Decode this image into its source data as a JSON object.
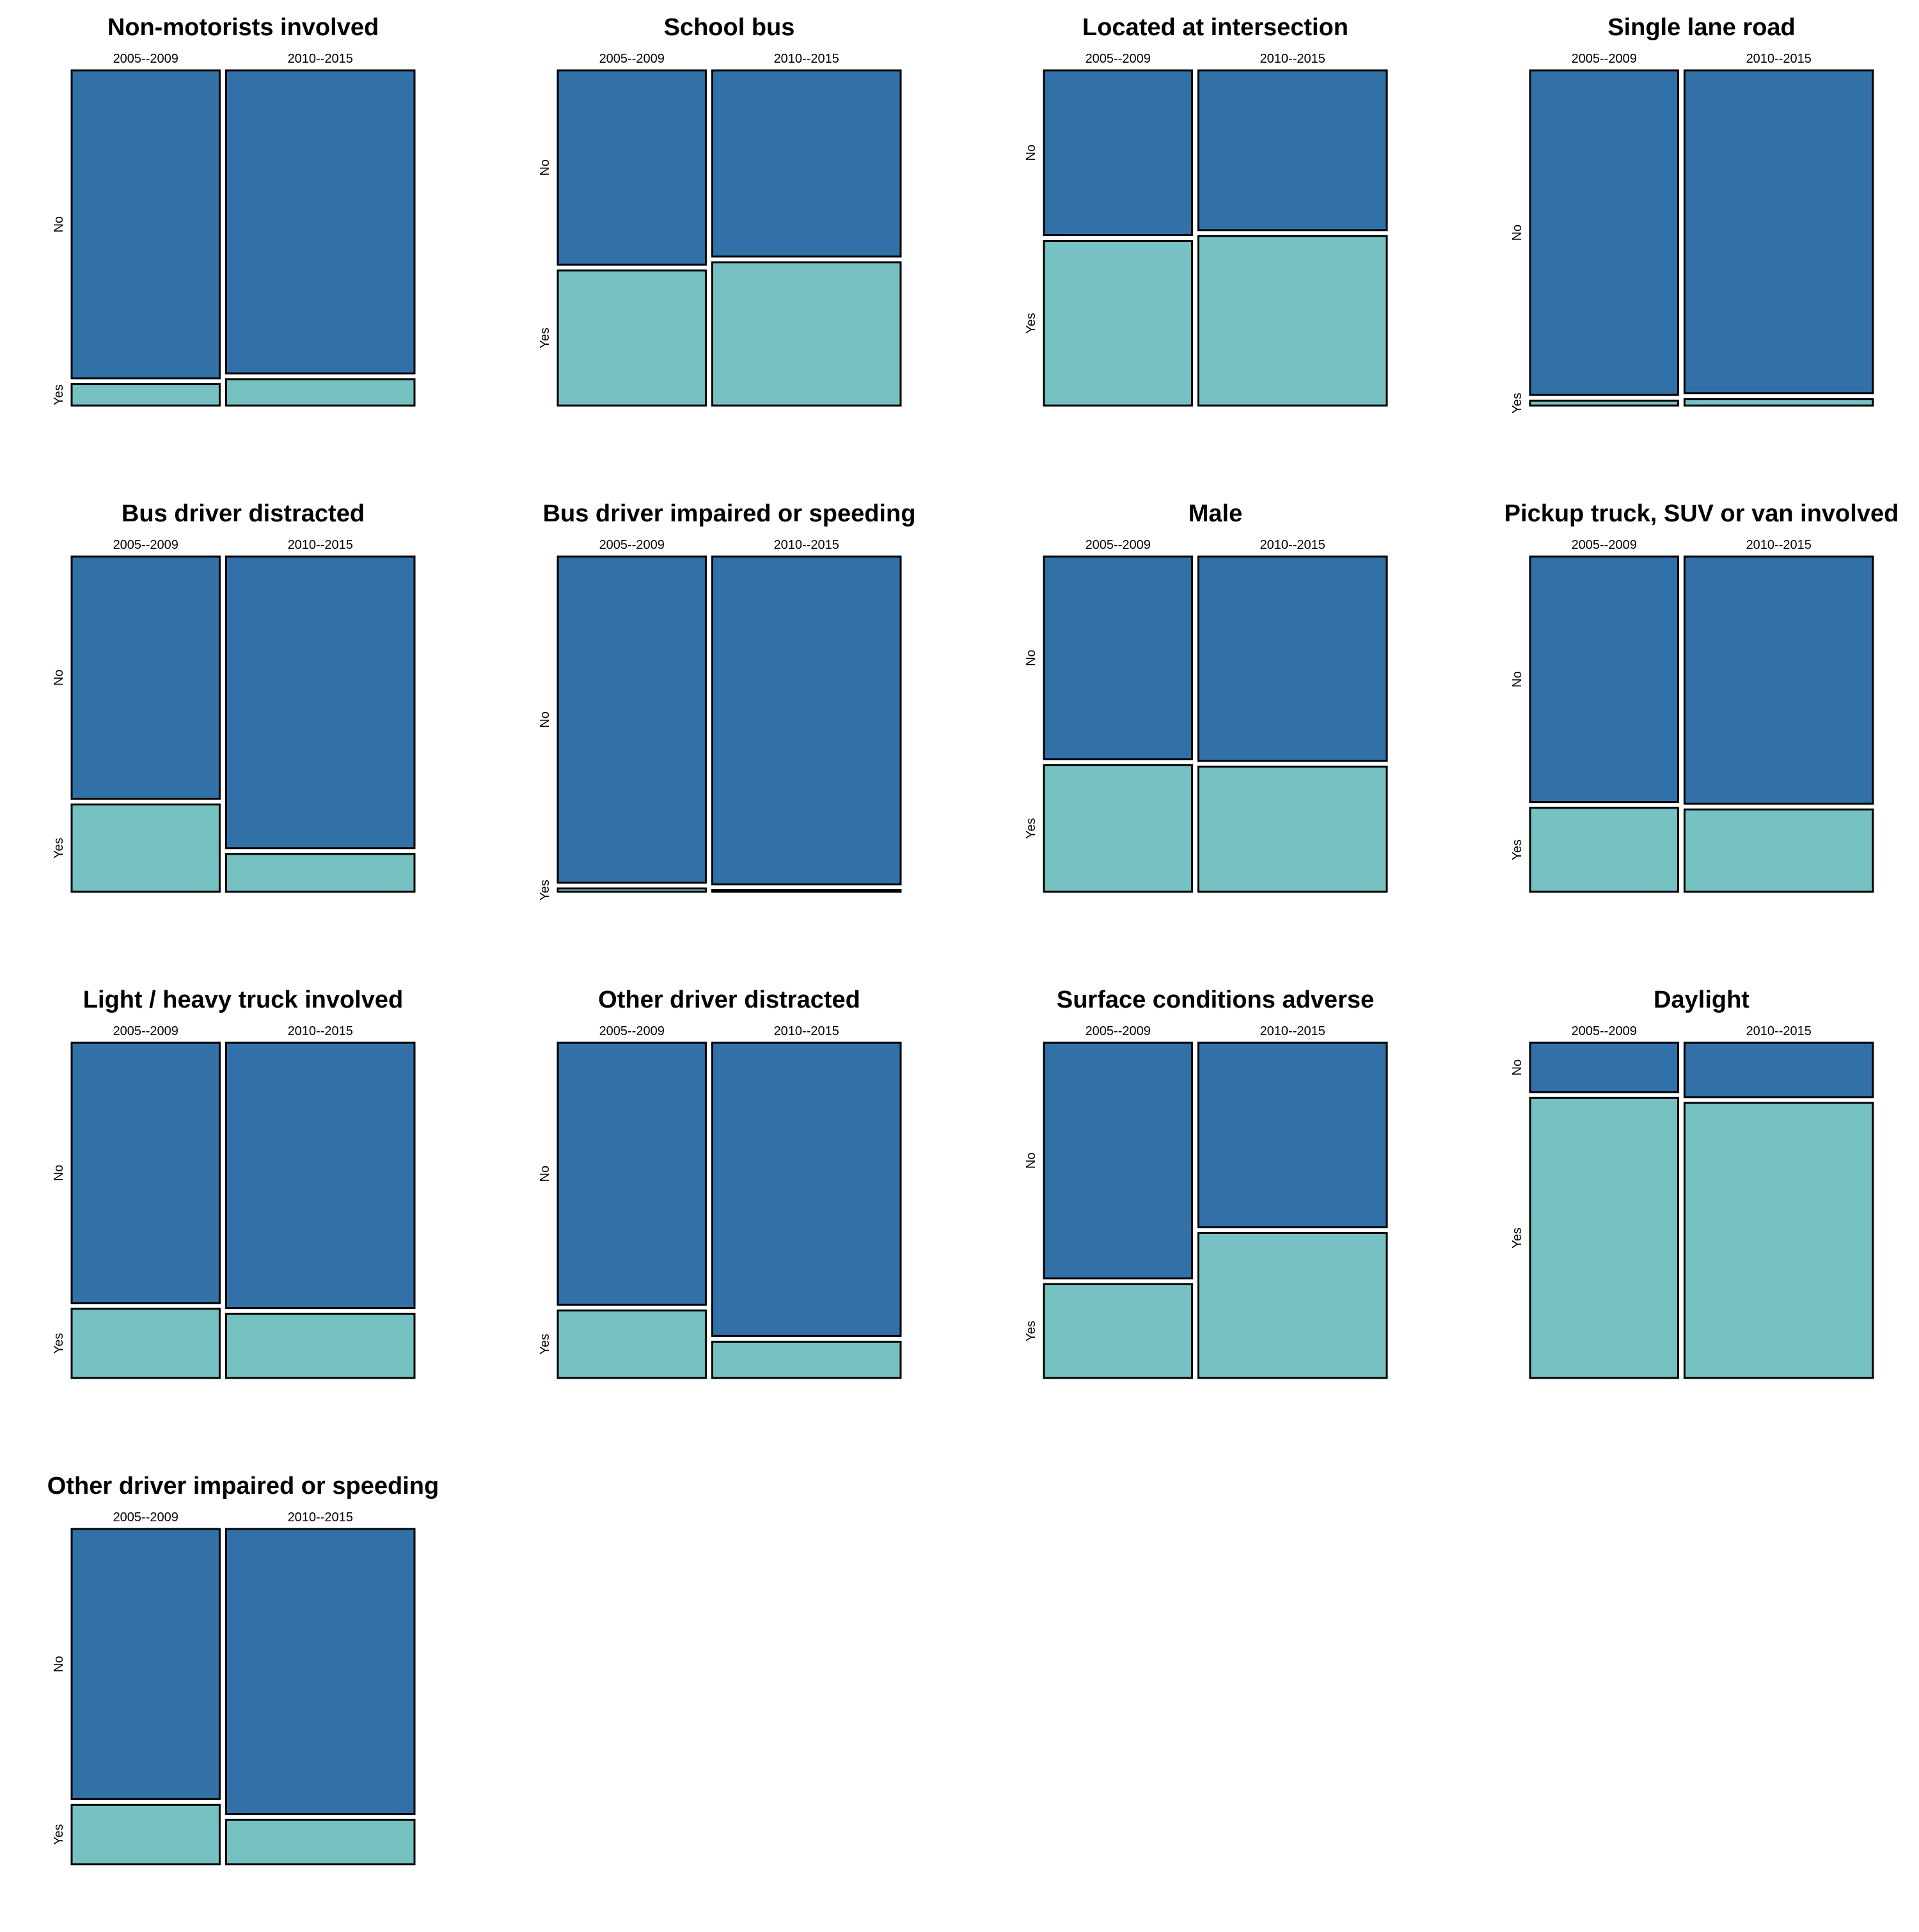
{
  "colors": {
    "no": "#3171a8",
    "yes": "#76c1c1",
    "border": "#000000",
    "background": "#ffffff"
  },
  "chart_data": [
    {
      "type": "mosaic",
      "title": "Non-motorists involved",
      "categories": [
        "2005--2009",
        "2010--2015"
      ],
      "col_widths": [
        0.44,
        0.56
      ],
      "levels": [
        "No",
        "Yes"
      ],
      "yes_share": [
        0.065,
        0.08
      ]
    },
    {
      "type": "mosaic",
      "title": "School bus",
      "categories": [
        "2005--2009",
        "2010--2015"
      ],
      "col_widths": [
        0.44,
        0.56
      ],
      "levels": [
        "No",
        "Yes"
      ],
      "yes_share": [
        0.41,
        0.435
      ]
    },
    {
      "type": "mosaic",
      "title": "Located at intersection",
      "categories": [
        "2005--2009",
        "2010--2015"
      ],
      "col_widths": [
        0.44,
        0.56
      ],
      "levels": [
        "No",
        "Yes"
      ],
      "yes_share": [
        0.5,
        0.515
      ]
    },
    {
      "type": "mosaic",
      "title": "Single lane road",
      "categories": [
        "2005--2009",
        "2010--2015"
      ],
      "col_widths": [
        0.44,
        0.56
      ],
      "levels": [
        "No",
        "Yes"
      ],
      "yes_share": [
        0.015,
        0.02
      ]
    },
    {
      "type": "mosaic",
      "title": "Bus driver distracted",
      "categories": [
        "2005--2009",
        "2010--2015"
      ],
      "col_widths": [
        0.44,
        0.56
      ],
      "levels": [
        "No",
        "Yes"
      ],
      "yes_share": [
        0.265,
        0.115
      ]
    },
    {
      "type": "mosaic",
      "title": "Bus driver impaired or speeding",
      "categories": [
        "2005--2009",
        "2010--2015"
      ],
      "col_widths": [
        0.44,
        0.56
      ],
      "levels": [
        "No",
        "Yes"
      ],
      "yes_share": [
        0.01,
        0.005
      ]
    },
    {
      "type": "mosaic",
      "title": "Male",
      "categories": [
        "2005--2009",
        "2010--2015"
      ],
      "col_widths": [
        0.44,
        0.56
      ],
      "levels": [
        "No",
        "Yes"
      ],
      "yes_share": [
        0.385,
        0.38
      ]
    },
    {
      "type": "mosaic",
      "title": "Pickup truck, SUV or van involved",
      "categories": [
        "2005--2009",
        "2010--2015"
      ],
      "col_widths": [
        0.44,
        0.56
      ],
      "levels": [
        "No",
        "Yes"
      ],
      "yes_share": [
        0.255,
        0.25
      ]
    },
    {
      "type": "mosaic",
      "title": "Light / heavy truck involved",
      "categories": [
        "2005--2009",
        "2010--2015"
      ],
      "col_widths": [
        0.44,
        0.56
      ],
      "levels": [
        "No",
        "Yes"
      ],
      "yes_share": [
        0.21,
        0.195
      ]
    },
    {
      "type": "mosaic",
      "title": "Other driver distracted",
      "categories": [
        "2005--2009",
        "2010--2015"
      ],
      "col_widths": [
        0.44,
        0.56
      ],
      "levels": [
        "No",
        "Yes"
      ],
      "yes_share": [
        0.205,
        0.11
      ]
    },
    {
      "type": "mosaic",
      "title": "Surface conditions adverse",
      "categories": [
        "2005--2009",
        "2010--2015"
      ],
      "col_widths": [
        0.44,
        0.56
      ],
      "levels": [
        "No",
        "Yes"
      ],
      "yes_share": [
        0.285,
        0.44
      ]
    },
    {
      "type": "mosaic",
      "title": "Daylight",
      "categories": [
        "2005--2009",
        "2010--2015"
      ],
      "col_widths": [
        0.44,
        0.56
      ],
      "levels": [
        "No",
        "Yes"
      ],
      "yes_share": [
        0.85,
        0.835
      ]
    },
    {
      "type": "mosaic",
      "title": "Other driver impaired or speeding",
      "categories": [
        "2005--2009",
        "2010--2015"
      ],
      "col_widths": [
        0.44,
        0.56
      ],
      "levels": [
        "No",
        "Yes"
      ],
      "yes_share": [
        0.18,
        0.135
      ]
    }
  ]
}
